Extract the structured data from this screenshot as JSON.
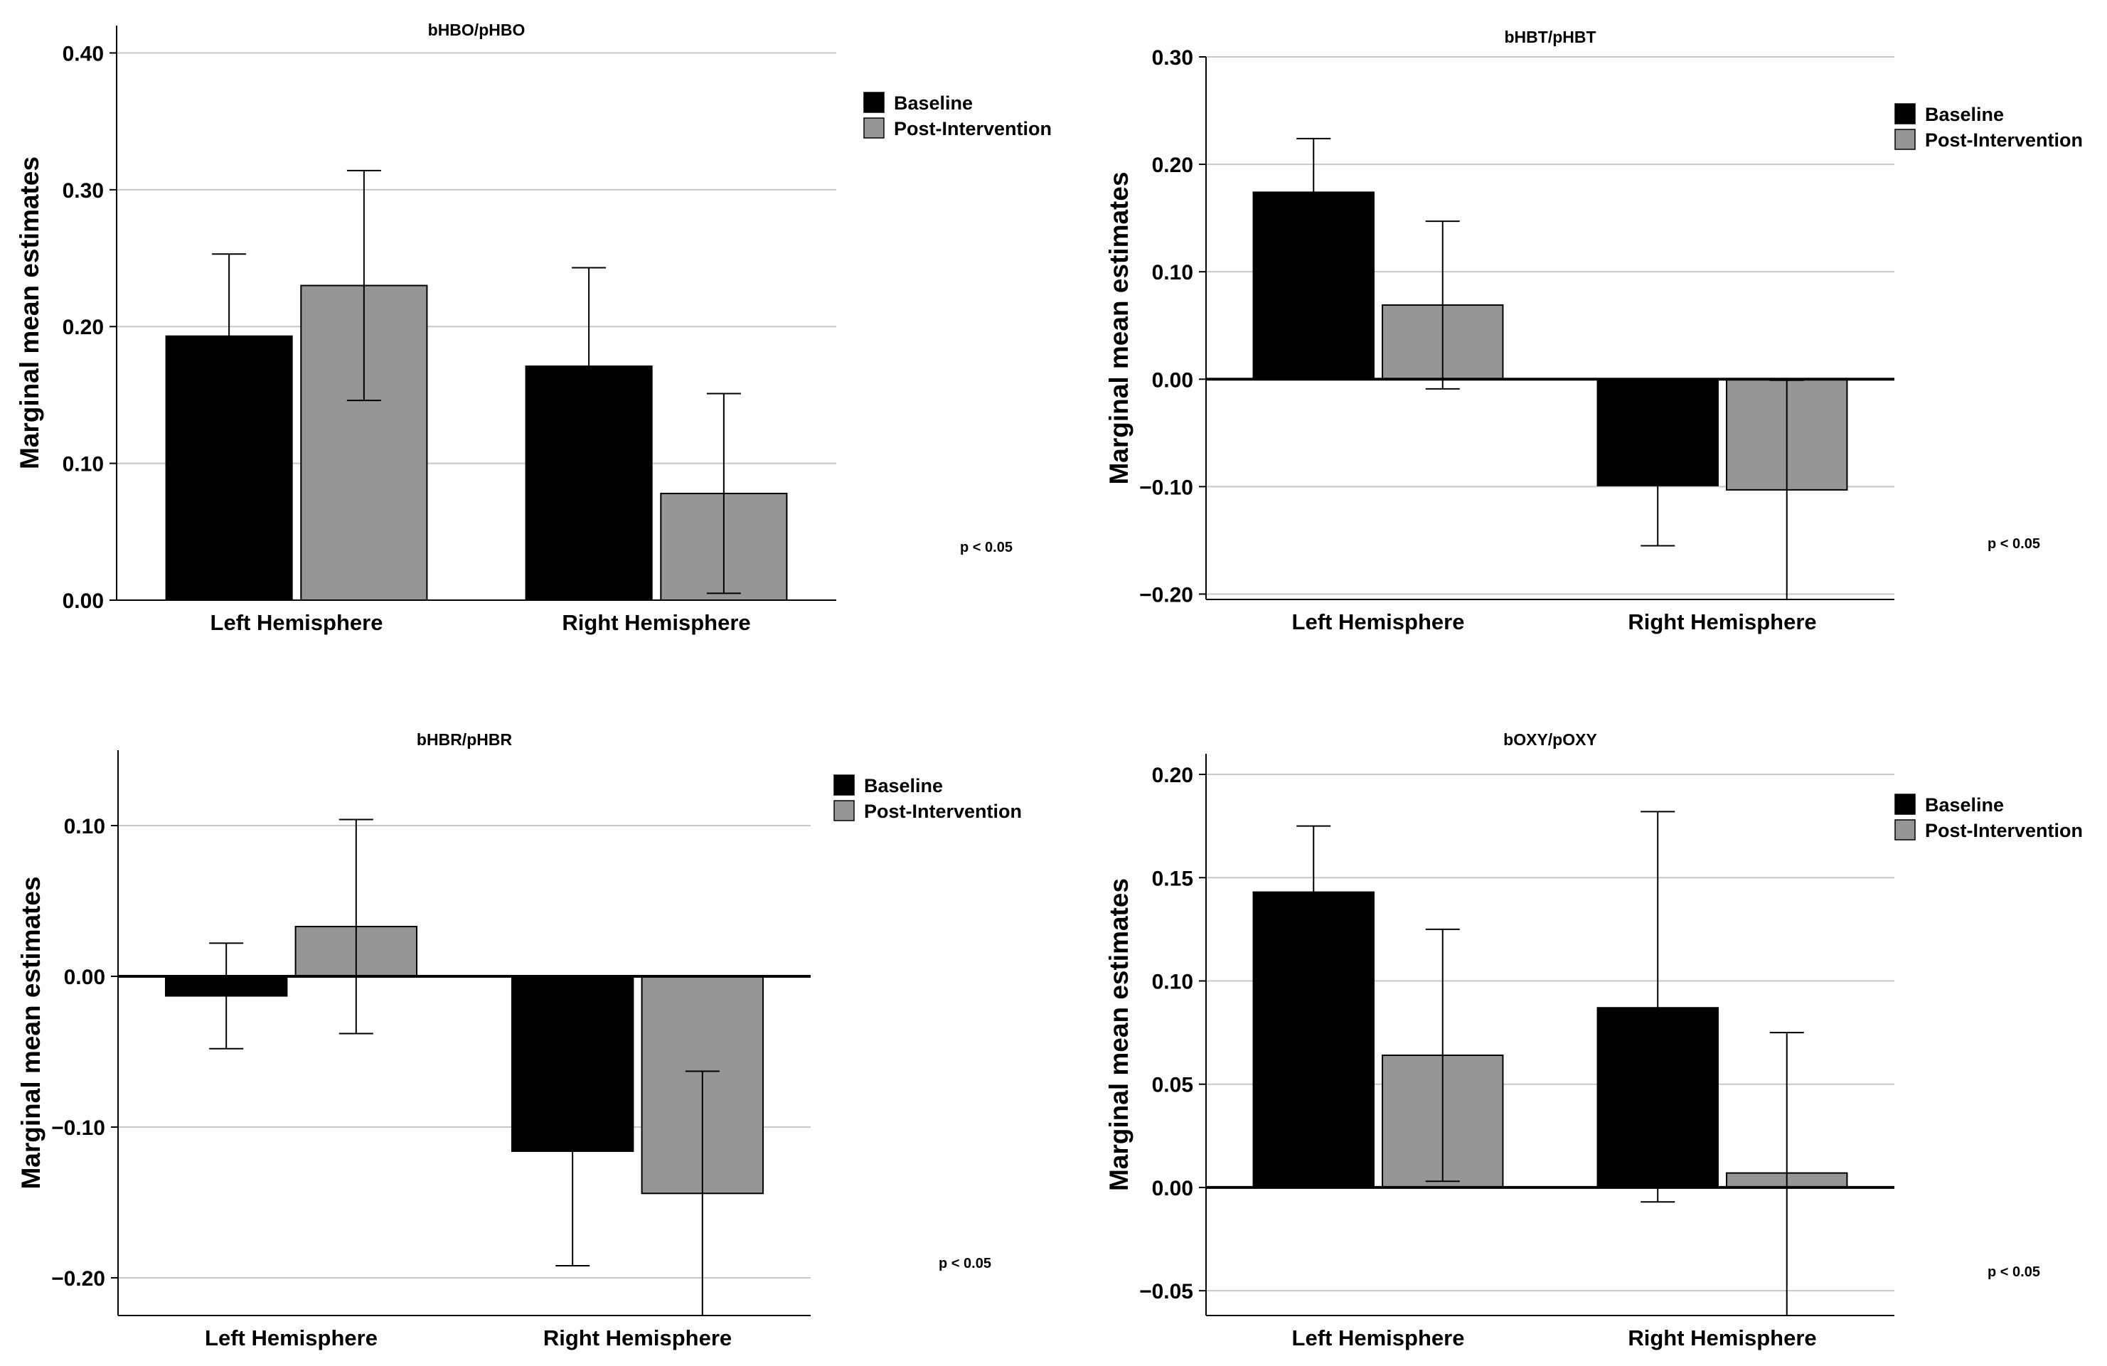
{
  "chart_data": [
    {
      "type": "bar",
      "title": "bHBO/pHBO",
      "xlabel": "",
      "ylabel": "Marginal mean estimates",
      "categories": [
        "Left Hemisphere",
        "Right Hemisphere"
      ],
      "ylim": [
        0.0,
        0.42
      ],
      "yticks": [
        0.0,
        0.1,
        0.2,
        0.3,
        0.4
      ],
      "ytick_labels": [
        "0.00",
        "0.10",
        "0.20",
        "0.30",
        "0.40"
      ],
      "grid": true,
      "legend_position": "top-right",
      "series": [
        {
          "name": "Baseline",
          "color": "#000000",
          "values": [
            0.193,
            0.171
          ],
          "err_low": [
            0.135,
            0.1
          ],
          "err_high": [
            0.253,
            0.243
          ]
        },
        {
          "name": "Post-Intervention",
          "color": "#969696",
          "values": [
            0.23,
            0.078
          ],
          "err_low": [
            0.146,
            0.005
          ],
          "err_high": [
            0.314,
            0.151
          ]
        }
      ],
      "annotation": "p < 0.05"
    },
    {
      "type": "bar",
      "title": "bHBT/pHBT",
      "xlabel": "",
      "ylabel": "Marginal mean estimates",
      "categories": [
        "Left Hemisphere",
        "Right Hemisphere"
      ],
      "ylim": [
        -0.205,
        0.3
      ],
      "yticks": [
        -0.2,
        -0.1,
        0.0,
        0.1,
        0.2,
        0.3
      ],
      "ytick_labels": [
        "−0.20",
        "−0.10",
        "0.00",
        "0.10",
        "0.20",
        "0.30"
      ],
      "grid": true,
      "legend_position": "top-right",
      "series": [
        {
          "name": "Baseline",
          "color": "#000000",
          "values": [
            0.174,
            -0.099
          ],
          "err_low": [
            0.124,
            -0.155
          ],
          "err_high": [
            0.224,
            -0.045
          ]
        },
        {
          "name": "Post-Intervention",
          "color": "#969696",
          "values": [
            0.069,
            -0.103
          ],
          "err_low": [
            -0.009,
            -0.205
          ],
          "err_high": [
            0.147,
            -0.001
          ]
        }
      ],
      "annotation": "p < 0.05"
    },
    {
      "type": "bar",
      "title": "bHBR/pHBR",
      "xlabel": "",
      "ylabel": "Marginal mean estimates",
      "categories": [
        "Left Hemisphere",
        "Right Hemisphere"
      ],
      "ylim": [
        -0.225,
        0.15
      ],
      "yticks": [
        -0.2,
        -0.1,
        0.0,
        0.1
      ],
      "ytick_labels": [
        "−0.20",
        "−0.10",
        "0.00",
        "0.10"
      ],
      "grid": true,
      "legend_position": "top-right",
      "series": [
        {
          "name": "Baseline",
          "color": "#000000",
          "values": [
            -0.013,
            -0.116
          ],
          "err_low": [
            -0.048,
            -0.192
          ],
          "err_high": [
            0.022,
            -0.04
          ]
        },
        {
          "name": "Post-Intervention",
          "color": "#969696",
          "values": [
            0.033,
            -0.144
          ],
          "err_low": [
            -0.038,
            -0.225
          ],
          "err_high": [
            0.104,
            -0.063
          ]
        }
      ],
      "annotation": "p < 0.05"
    },
    {
      "type": "bar",
      "title": "bOXY/pOXY",
      "xlabel": "",
      "ylabel": "Marginal mean estimates",
      "categories": [
        "Left Hemisphere",
        "Right Hemisphere"
      ],
      "ylim": [
        -0.062,
        0.21
      ],
      "yticks": [
        -0.05,
        0.0,
        0.05,
        0.1,
        0.15,
        0.2
      ],
      "ytick_labels": [
        "−0.05",
        "0.00",
        "0.05",
        "0.10",
        "0.15",
        "0.20"
      ],
      "grid": true,
      "legend_position": "top-right",
      "series": [
        {
          "name": "Baseline",
          "color": "#000000",
          "values": [
            0.143,
            0.087
          ],
          "err_low": [
            0.111,
            -0.007
          ],
          "err_high": [
            0.175,
            0.182
          ]
        },
        {
          "name": "Post-Intervention",
          "color": "#969696",
          "values": [
            0.064,
            0.007
          ],
          "err_low": [
            0.003,
            -0.062
          ],
          "err_high": [
            0.125,
            0.075
          ]
        }
      ],
      "annotation": "p < 0.05"
    }
  ]
}
